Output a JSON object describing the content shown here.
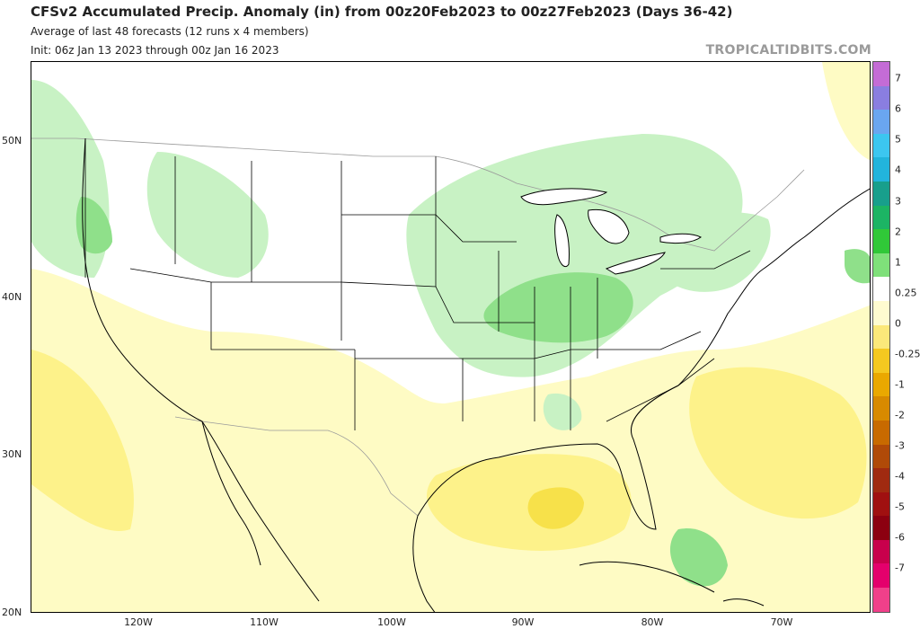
{
  "header": {
    "title": "CFSv2 Accumulated Precip. Anomaly (in) from 00z20Feb2023 to 00z27Feb2023 (Days 36-42)",
    "subtitle1": "Average of last 48 forecasts (12 runs x 4 members)",
    "subtitle2": "Init: 06z Jan 13 2023 through 00z Jan 16 2023",
    "brand": "TROPICALTIDBITS.COM"
  },
  "map": {
    "lat_labels": [
      "50N",
      "40N",
      "30N",
      "20N"
    ],
    "lon_labels": [
      "120W",
      "110W",
      "100W",
      "90W",
      "80W",
      "70W"
    ],
    "colors": {
      "wet_light": "#c8f2c4",
      "wet_mid": "#8fe08a",
      "wet_strong": "#4cc94c",
      "dry_light": "#fefbc4",
      "dry_mid": "#fdf28a",
      "dry_strong": "#f7e14a",
      "land": "#ffffff",
      "boundary": "#000000",
      "country_border": "#9a9a9a"
    }
  },
  "colorbar": {
    "labels": [
      "7",
      "6",
      "5",
      "4",
      "3",
      "2",
      "1",
      "0.25",
      "0",
      "-0.25",
      "-1",
      "-2",
      "-3",
      "-4",
      "-5",
      "-6",
      "-7"
    ],
    "colors": [
      "#c46cd6",
      "#8a7ee0",
      "#6aa6f0",
      "#3cc6f0",
      "#22b4dc",
      "#189f8c",
      "#1cb464",
      "#30c838",
      "#7fe07a",
      "#ffffff",
      "#fefbd0",
      "#fbe87a",
      "#f4c820",
      "#eaa800",
      "#d88a00",
      "#c86a00",
      "#b04a08",
      "#a02a10",
      "#a01010",
      "#8c0010",
      "#c8004c",
      "#e4006c",
      "#f0408a"
    ]
  }
}
